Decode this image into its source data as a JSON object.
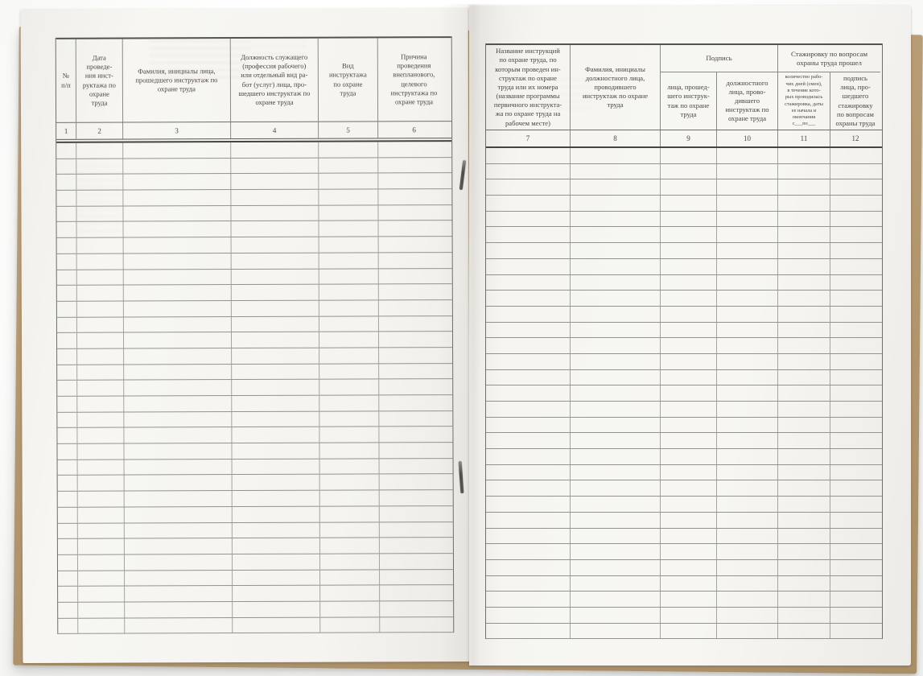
{
  "colors": {
    "kraft_cover": "#b3976f",
    "page": "#f6f5f1",
    "table_line": "#8a8a86",
    "table_line_dark": "#46443f",
    "text": "#4c463d"
  },
  "left_table": {
    "columns": [
      {
        "number": "1",
        "header": "№\nп/п"
      },
      {
        "number": "2",
        "header": "Дата\nпроведе-\nния инст-\nруктажа по\nохране\nтруда"
      },
      {
        "number": "3",
        "header": "Фамилия, инициалы лица,\nпрошедшего инструктаж по\nохране труда"
      },
      {
        "number": "4",
        "header": "Должность служащего\n(профессия рабочего)\nили отдельный вид ра-\nбот (услуг) лица, про-\nшедшего инструктаж по\nохране труда"
      },
      {
        "number": "5",
        "header": "Вид\nинструктажа\nпо охране\nтруда"
      },
      {
        "number": "6",
        "header": "Причина\nпроведения\nвнепланового,\nцелевого\nинструктажа по\nохране труда"
      }
    ],
    "empty_row_count": 31
  },
  "right_table": {
    "columns_single": [
      {
        "number": "7",
        "header": "Название инструкций\nпо охране труда, по\nкоторым проведен ин-\nструктаж по охране\nтруда или их номера\n(название программы\nпервичного инструкта-\nжа по охране труда на\nрабочем месте)"
      },
      {
        "number": "8",
        "header": "Фамилия, инициалы\nдолжностного лица,\nпроводившего\nинструктаж по охране\nтруда"
      }
    ],
    "groups": [
      {
        "label": "Подпись",
        "columns": [
          {
            "number": "9",
            "header": "лица, прошед-\nшего инструк-\nтаж по охране\nтруда"
          },
          {
            "number": "10",
            "header": "должностного\nлица, прово-\nдившего\nинструктаж по\nохране труда"
          }
        ]
      },
      {
        "label": "Стажировку по вопросам\nохраны труда прошел",
        "columns": [
          {
            "number": "11",
            "header": "количество рабо-\nчих дней (смен),\nв течение кото-\nрых проводилась\nстажировка, даты\nее начала и\nокончания\nс___по___"
          },
          {
            "number": "12",
            "header": "подпись\nлица, про-\nшедшего\nстажировку\nпо вопросам\nохраны труда"
          }
        ]
      }
    ],
    "empty_row_count": 31
  }
}
